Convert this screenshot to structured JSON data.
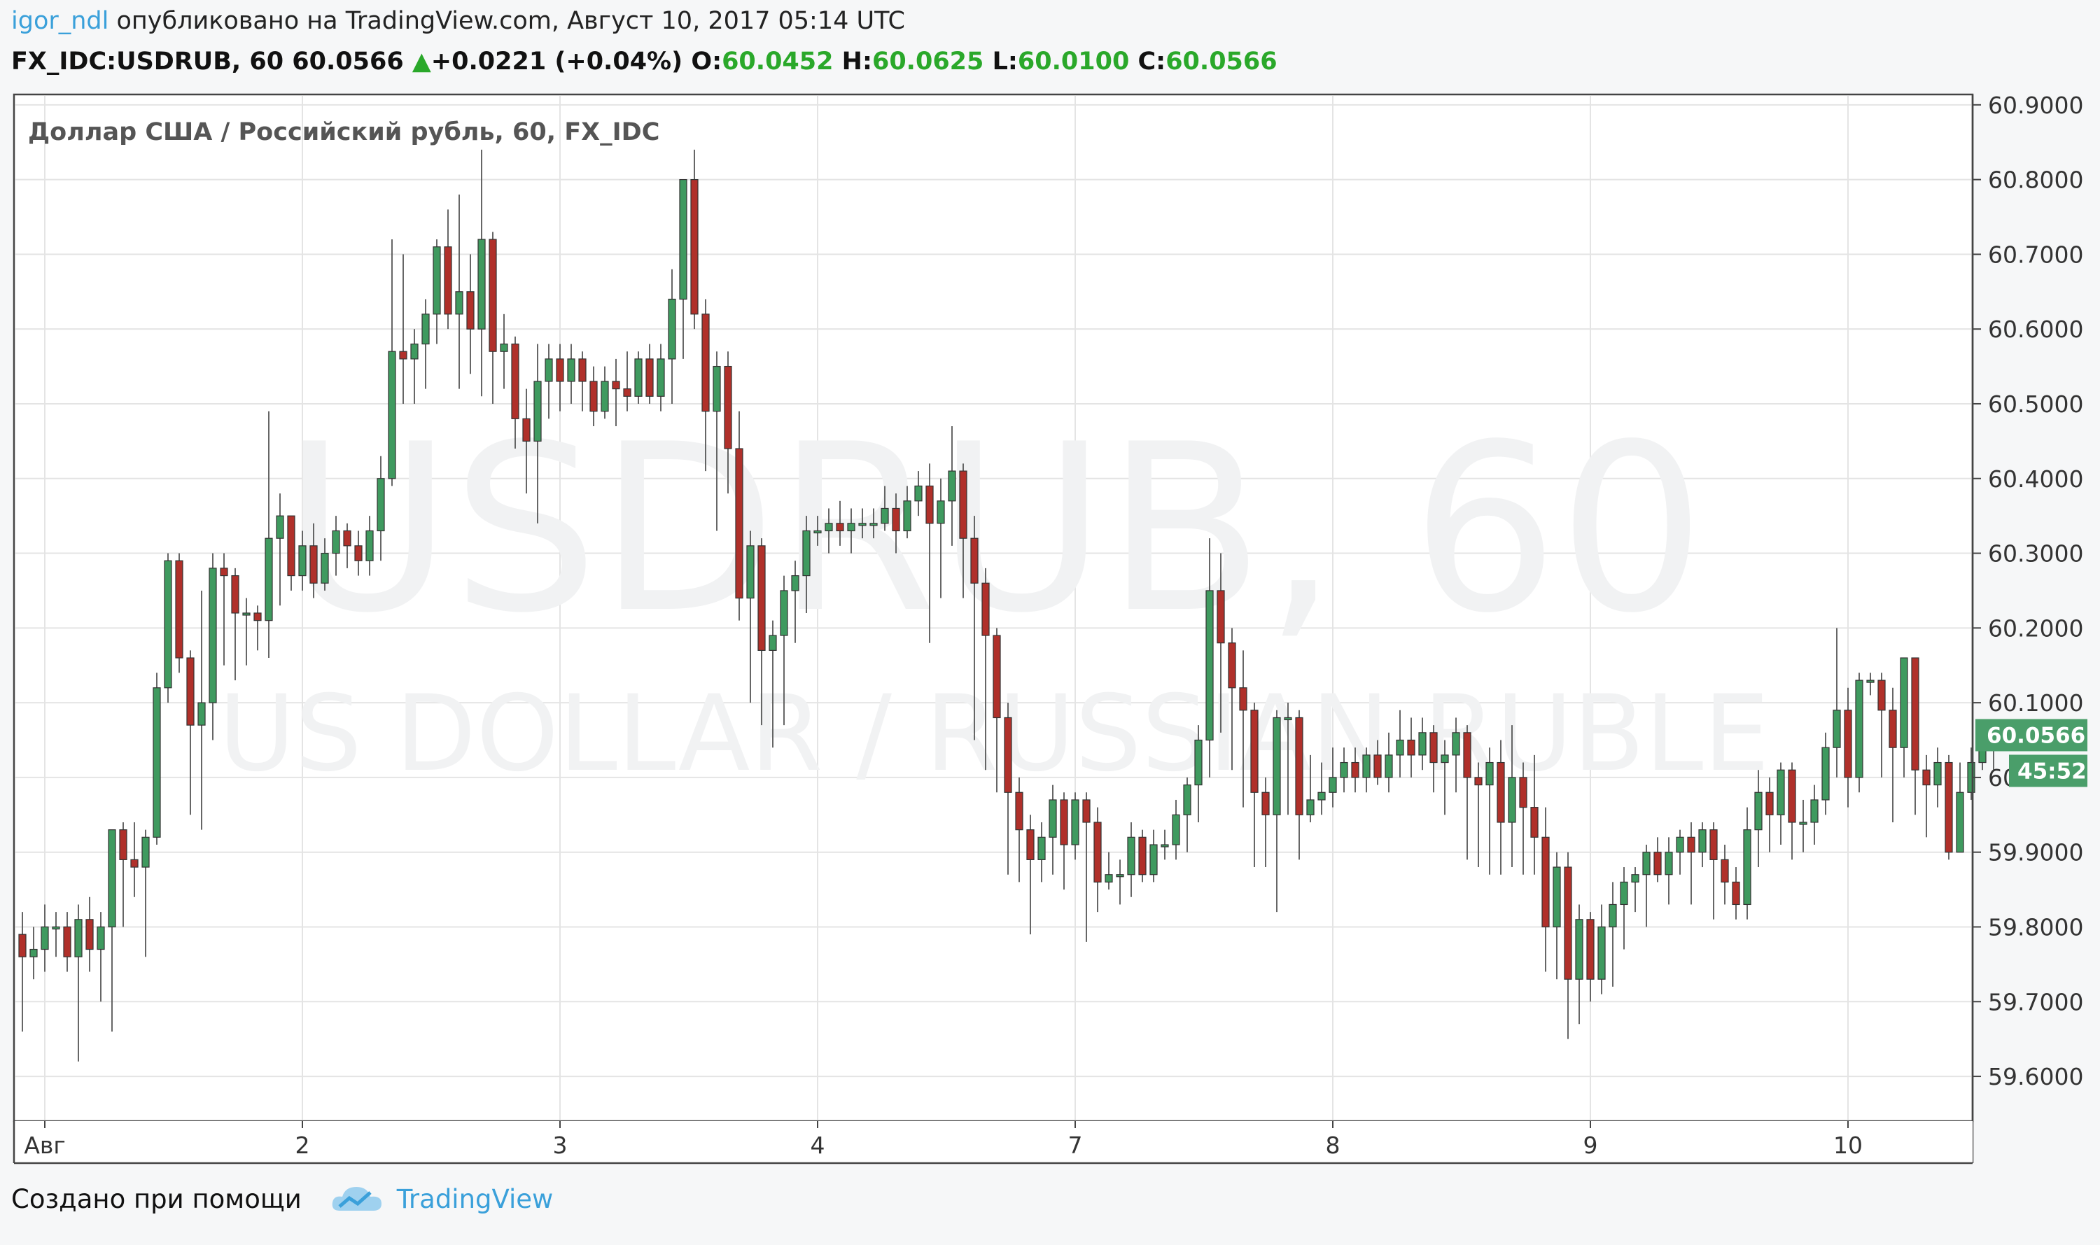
{
  "header": {
    "user": "igor_ndl",
    "published": " опубликовано на TradingView.com, Август 10, 2017 05:14 UTC",
    "symbol": "FX_IDC:USDRUB, 60",
    "last": "60.0566",
    "change": "+0.0221 (+0.04%)",
    "o_label": "O:",
    "o_val": "60.0452",
    "h_label": "H:",
    "h_val": "60.0625",
    "l_label": "L:",
    "l_val": "60.0100",
    "c_label": "C:",
    "c_val": "60.0566"
  },
  "chart_data": {
    "type": "candlestick",
    "title": "Доллар США / Российский рубль, 60, FX_IDC",
    "watermark_main": "USDRUB, 60",
    "watermark_sub": "US DOLLAR / RUSSIAN RUBLE",
    "y_ticks": [
      "60.9000",
      "60.8000",
      "60.7000",
      "60.6000",
      "60.5000",
      "60.4000",
      "60.3000",
      "60.2000",
      "60.1000",
      "60.0000",
      "59.9000",
      "59.8000",
      "59.7000",
      "59.6000"
    ],
    "x_ticks": [
      {
        "label": "Авг",
        "index": 2
      },
      {
        "label": "2",
        "index": 25
      },
      {
        "label": "3",
        "index": 48
      },
      {
        "label": "4",
        "index": 71
      },
      {
        "label": "7",
        "index": 94
      },
      {
        "label": "8",
        "index": 117
      },
      {
        "label": "9",
        "index": 140
      },
      {
        "label": "10",
        "index": 163
      }
    ],
    "ylim": [
      59.542,
      60.912
    ],
    "last_price": "60.0566",
    "countdown": "45:52",
    "grid": true,
    "colors": {
      "up": "#3f9a5f",
      "down": "#b0302a",
      "axis": "#333333",
      "grid": "#e4e4e4",
      "label_bg": "#4a9e6a"
    },
    "candles": [
      [
        59.79,
        59.76,
        59.82,
        59.66
      ],
      [
        59.76,
        59.77,
        59.8,
        59.73
      ],
      [
        59.77,
        59.8,
        59.83,
        59.74
      ],
      [
        59.8,
        59.8,
        59.82,
        59.76
      ],
      [
        59.8,
        59.76,
        59.82,
        59.74
      ],
      [
        59.76,
        59.81,
        59.83,
        59.62
      ],
      [
        59.81,
        59.77,
        59.84,
        59.74
      ],
      [
        59.77,
        59.8,
        59.82,
        59.7
      ],
      [
        59.8,
        59.93,
        59.93,
        59.66
      ],
      [
        59.93,
        59.89,
        59.94,
        59.8
      ],
      [
        59.89,
        59.88,
        59.94,
        59.84
      ],
      [
        59.88,
        59.92,
        59.93,
        59.76
      ],
      [
        59.92,
        60.12,
        60.14,
        59.91
      ],
      [
        60.12,
        60.29,
        60.3,
        60.1
      ],
      [
        60.29,
        60.16,
        60.3,
        60.14
      ],
      [
        60.16,
        60.07,
        60.17,
        59.95
      ],
      [
        60.07,
        60.1,
        60.25,
        59.93
      ],
      [
        60.1,
        60.28,
        60.3,
        60.05
      ],
      [
        60.28,
        60.27,
        60.3,
        60.15
      ],
      [
        60.27,
        60.22,
        60.28,
        60.13
      ],
      [
        60.22,
        60.22,
        60.24,
        60.15
      ],
      [
        60.22,
        60.21,
        60.23,
        60.17
      ],
      [
        60.21,
        60.32,
        60.49,
        60.16
      ],
      [
        60.32,
        60.35,
        60.38,
        60.23
      ],
      [
        60.35,
        60.27,
        60.3,
        60.25
      ],
      [
        60.27,
        60.31,
        60.33,
        60.25
      ],
      [
        60.31,
        60.26,
        60.34,
        60.24
      ],
      [
        60.26,
        60.3,
        60.32,
        60.25
      ],
      [
        60.3,
        60.33,
        60.35,
        60.27
      ],
      [
        60.33,
        60.31,
        60.34,
        60.28
      ],
      [
        60.31,
        60.29,
        60.33,
        60.27
      ],
      [
        60.29,
        60.33,
        60.35,
        60.27
      ],
      [
        60.33,
        60.4,
        60.43,
        60.29
      ],
      [
        60.4,
        60.57,
        60.72,
        60.39
      ],
      [
        60.57,
        60.56,
        60.7,
        60.5
      ],
      [
        60.56,
        60.58,
        60.6,
        60.5
      ],
      [
        60.58,
        60.62,
        60.64,
        60.52
      ],
      [
        60.62,
        60.71,
        60.72,
        60.58
      ],
      [
        60.71,
        60.62,
        60.76,
        60.6
      ],
      [
        60.62,
        60.65,
        60.78,
        60.52
      ],
      [
        60.65,
        60.6,
        60.7,
        60.54
      ],
      [
        60.6,
        60.72,
        60.84,
        60.51
      ],
      [
        60.72,
        60.57,
        60.73,
        60.5
      ],
      [
        60.57,
        60.58,
        60.62,
        60.52
      ],
      [
        60.58,
        60.48,
        60.59,
        60.44
      ],
      [
        60.48,
        60.45,
        60.52,
        60.38
      ],
      [
        60.45,
        60.53,
        60.58,
        60.34
      ],
      [
        60.53,
        60.56,
        60.58,
        60.48
      ],
      [
        60.56,
        60.53,
        60.58,
        60.49
      ],
      [
        60.53,
        60.56,
        60.58,
        60.5
      ],
      [
        60.56,
        60.53,
        60.57,
        60.49
      ],
      [
        60.53,
        60.49,
        60.55,
        60.47
      ],
      [
        60.49,
        60.53,
        60.55,
        60.48
      ],
      [
        60.53,
        60.52,
        60.56,
        60.47
      ],
      [
        60.52,
        60.51,
        60.57,
        60.49
      ],
      [
        60.51,
        60.56,
        60.57,
        60.5
      ],
      [
        60.56,
        60.51,
        60.58,
        60.5
      ],
      [
        60.51,
        60.56,
        60.58,
        60.49
      ],
      [
        60.56,
        60.64,
        60.68,
        60.5
      ],
      [
        60.64,
        60.8,
        60.8,
        60.56
      ],
      [
        60.8,
        60.62,
        60.84,
        60.6
      ],
      [
        60.62,
        60.49,
        60.64,
        60.41
      ],
      [
        60.49,
        60.55,
        60.57,
        60.33
      ],
      [
        60.55,
        60.44,
        60.57,
        60.38
      ],
      [
        60.44,
        60.24,
        60.49,
        60.21
      ],
      [
        60.24,
        60.31,
        60.33,
        60.1
      ],
      [
        60.31,
        60.17,
        60.32,
        60.07
      ],
      [
        60.17,
        60.19,
        60.21,
        60.04
      ],
      [
        60.19,
        60.25,
        60.27,
        60.07
      ],
      [
        60.25,
        60.27,
        60.29,
        60.18
      ],
      [
        60.27,
        60.33,
        60.35,
        60.22
      ],
      [
        60.33,
        60.33,
        60.35,
        60.31
      ],
      [
        60.33,
        60.34,
        60.36,
        60.3
      ],
      [
        60.34,
        60.33,
        60.37,
        60.31
      ],
      [
        60.33,
        60.34,
        60.36,
        60.3
      ],
      [
        60.34,
        60.34,
        60.36,
        60.32
      ],
      [
        60.34,
        60.34,
        60.36,
        60.32
      ],
      [
        60.34,
        60.36,
        60.39,
        60.33
      ],
      [
        60.36,
        60.33,
        60.38,
        60.3
      ],
      [
        60.33,
        60.37,
        60.39,
        60.32
      ],
      [
        60.37,
        60.39,
        60.41,
        60.35
      ],
      [
        60.39,
        60.34,
        60.42,
        60.18
      ],
      [
        60.34,
        60.37,
        60.4,
        60.24
      ],
      [
        60.37,
        60.41,
        60.47,
        60.31
      ],
      [
        60.41,
        60.32,
        60.42,
        60.24
      ],
      [
        60.32,
        60.26,
        60.35,
        60.05
      ],
      [
        60.26,
        60.19,
        60.28,
        60.01
      ],
      [
        60.19,
        60.08,
        60.2,
        59.98
      ],
      [
        60.08,
        59.98,
        60.1,
        59.87
      ],
      [
        59.98,
        59.93,
        60.0,
        59.86
      ],
      [
        59.93,
        59.89,
        59.95,
        59.79
      ],
      [
        59.89,
        59.92,
        59.94,
        59.86
      ],
      [
        59.92,
        59.97,
        59.99,
        59.87
      ],
      [
        59.97,
        59.91,
        59.98,
        59.85
      ],
      [
        59.91,
        59.97,
        59.98,
        59.89
      ],
      [
        59.97,
        59.94,
        59.98,
        59.78
      ],
      [
        59.94,
        59.86,
        59.96,
        59.82
      ],
      [
        59.86,
        59.87,
        59.9,
        59.85
      ],
      [
        59.87,
        59.87,
        59.89,
        59.83
      ],
      [
        59.87,
        59.92,
        59.94,
        59.84
      ],
      [
        59.92,
        59.87,
        59.93,
        59.86
      ],
      [
        59.87,
        59.91,
        59.93,
        59.86
      ],
      [
        59.91,
        59.91,
        59.93,
        59.89
      ],
      [
        59.91,
        59.95,
        59.97,
        59.89
      ],
      [
        59.95,
        59.99,
        60.0,
        59.9
      ],
      [
        59.99,
        60.05,
        60.07,
        59.94
      ],
      [
        60.05,
        60.25,
        60.32,
        60.0
      ],
      [
        60.25,
        60.18,
        60.3,
        60.06
      ],
      [
        60.18,
        60.12,
        60.2,
        60.01
      ],
      [
        60.12,
        60.09,
        60.17,
        59.96
      ],
      [
        60.09,
        59.98,
        60.1,
        59.88
      ],
      [
        59.98,
        59.95,
        60.0,
        59.88
      ],
      [
        59.95,
        60.08,
        60.09,
        59.82
      ],
      [
        60.08,
        60.08,
        60.1,
        59.95
      ],
      [
        60.08,
        59.95,
        60.09,
        59.89
      ],
      [
        59.95,
        59.97,
        60.03,
        59.94
      ],
      [
        59.97,
        59.98,
        60.02,
        59.95
      ],
      [
        59.98,
        60.0,
        60.04,
        59.96
      ],
      [
        60.0,
        60.02,
        60.04,
        59.98
      ],
      [
        60.02,
        60.0,
        60.04,
        59.98
      ],
      [
        60.0,
        60.03,
        60.04,
        59.98
      ],
      [
        60.03,
        60.0,
        60.05,
        59.99
      ],
      [
        60.0,
        60.03,
        60.06,
        59.98
      ],
      [
        60.03,
        60.05,
        60.09,
        60.0
      ],
      [
        60.05,
        60.03,
        60.08,
        60.0
      ],
      [
        60.03,
        60.06,
        60.08,
        60.01
      ],
      [
        60.06,
        60.02,
        60.07,
        59.98
      ],
      [
        60.02,
        60.03,
        60.05,
        59.95
      ],
      [
        60.03,
        60.06,
        60.08,
        59.98
      ],
      [
        60.06,
        60.0,
        60.07,
        59.89
      ],
      [
        60.0,
        59.99,
        60.02,
        59.88
      ],
      [
        59.99,
        60.02,
        60.04,
        59.87
      ],
      [
        60.02,
        59.94,
        60.05,
        59.87
      ],
      [
        59.94,
        60.0,
        60.07,
        59.88
      ],
      [
        60.0,
        59.96,
        60.02,
        59.87
      ],
      [
        59.96,
        59.92,
        60.03,
        59.87
      ],
      [
        59.92,
        59.8,
        59.96,
        59.74
      ],
      [
        59.8,
        59.88,
        59.9,
        59.73
      ],
      [
        59.88,
        59.73,
        59.9,
        59.65
      ],
      [
        59.73,
        59.81,
        59.83,
        59.67
      ],
      [
        59.81,
        59.73,
        59.82,
        59.7
      ],
      [
        59.73,
        59.8,
        59.83,
        59.71
      ],
      [
        59.8,
        59.83,
        59.86,
        59.72
      ],
      [
        59.83,
        59.86,
        59.88,
        59.77
      ],
      [
        59.86,
        59.87,
        59.88,
        59.82
      ],
      [
        59.87,
        59.9,
        59.91,
        59.8
      ],
      [
        59.9,
        59.87,
        59.92,
        59.86
      ],
      [
        59.87,
        59.9,
        59.92,
        59.83
      ],
      [
        59.9,
        59.92,
        59.93,
        59.87
      ],
      [
        59.92,
        59.9,
        59.94,
        59.83
      ],
      [
        59.9,
        59.93,
        59.94,
        59.88
      ],
      [
        59.93,
        59.89,
        59.94,
        59.81
      ],
      [
        59.89,
        59.86,
        59.91,
        59.83
      ],
      [
        59.86,
        59.83,
        59.88,
        59.81
      ],
      [
        59.83,
        59.93,
        59.96,
        59.81
      ],
      [
        59.93,
        59.98,
        60.01,
        59.88
      ],
      [
        59.98,
        59.95,
        60.0,
        59.9
      ],
      [
        59.95,
        60.01,
        60.02,
        59.91
      ],
      [
        60.01,
        59.94,
        60.02,
        59.89
      ],
      [
        59.94,
        59.94,
        59.97,
        59.9
      ],
      [
        59.94,
        59.97,
        59.99,
        59.91
      ],
      [
        59.97,
        60.04,
        60.06,
        59.95
      ],
      [
        60.04,
        60.09,
        60.2,
        60.0
      ],
      [
        60.09,
        60.0,
        60.12,
        59.96
      ],
      [
        60.0,
        60.13,
        60.14,
        59.98
      ],
      [
        60.13,
        60.13,
        60.14,
        60.11
      ],
      [
        60.13,
        60.09,
        60.14,
        60.0
      ],
      [
        60.09,
        60.04,
        60.12,
        59.94
      ],
      [
        60.04,
        60.16,
        60.16,
        60.0
      ],
      [
        60.16,
        60.01,
        60.16,
        59.95
      ],
      [
        60.01,
        59.99,
        60.03,
        59.92
      ],
      [
        59.99,
        60.02,
        60.04,
        59.96
      ],
      [
        60.02,
        59.9,
        60.03,
        59.89
      ],
      [
        59.9,
        59.98,
        60.02,
        59.95
      ],
      [
        59.98,
        60.02,
        60.04,
        59.97
      ],
      [
        60.02,
        60.04,
        60.05,
        60.01
      ],
      [
        60.0452,
        60.0566,
        60.0625,
        60.01
      ]
    ]
  },
  "footer": {
    "made_with": "Создано при помощи",
    "brand": "TradingView"
  }
}
